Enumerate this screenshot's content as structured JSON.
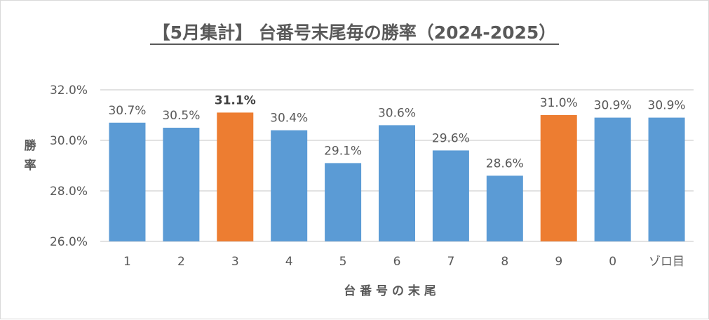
{
  "chart_data": {
    "type": "bar",
    "title": "【5月集計】 台番号末尾毎の勝率（2024-2025）",
    "xlabel": "台 番 号 の 末 尾",
    "ylabel": "勝 率",
    "categories": [
      "1",
      "2",
      "3",
      "4",
      "5",
      "6",
      "7",
      "8",
      "9",
      "0",
      "ゾロ目"
    ],
    "values": [
      30.7,
      30.5,
      31.1,
      30.4,
      29.1,
      30.6,
      29.6,
      28.6,
      31.0,
      30.9,
      30.9
    ],
    "data_labels": [
      "30.7%",
      "30.5%",
      "31.1%",
      "30.4%",
      "29.1%",
      "30.6%",
      "29.6%",
      "28.6%",
      "31.0%",
      "30.9%",
      "30.9%"
    ],
    "highlighted": [
      "3",
      "9"
    ],
    "bold_labels": [
      "3"
    ],
    "ylim": [
      26.0,
      32.0
    ],
    "yticks": [
      "26.0%",
      "28.0%",
      "30.0%",
      "32.0%"
    ],
    "grid": true,
    "colors": {
      "default": "#5B9BD5",
      "highlight": "#ED7D31"
    }
  }
}
